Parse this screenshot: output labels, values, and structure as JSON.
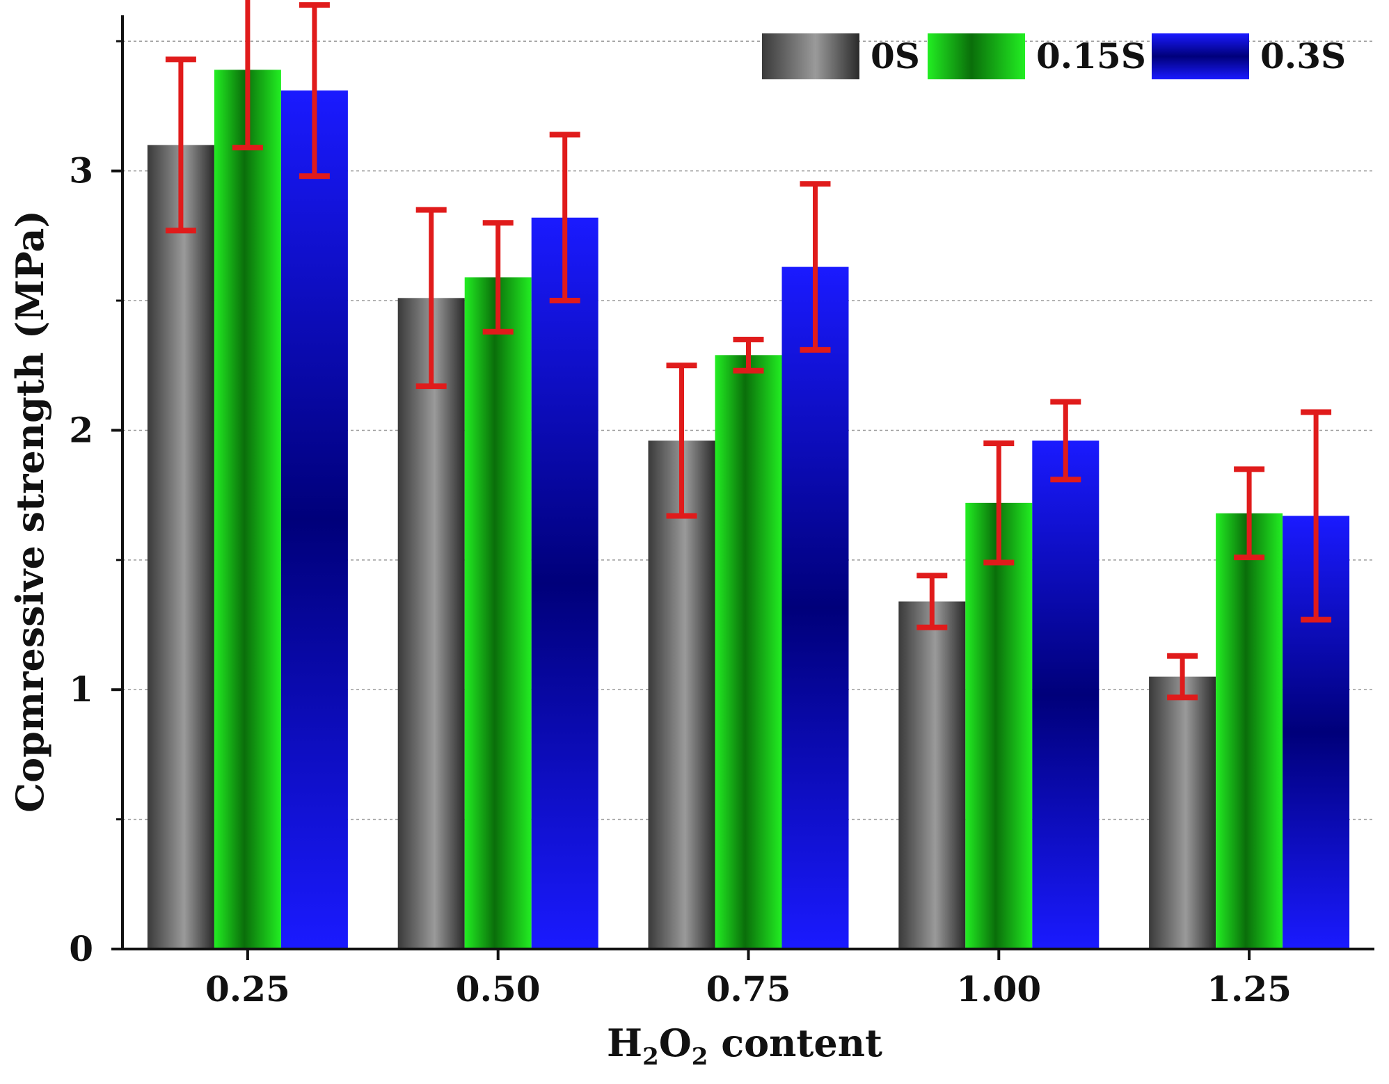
{
  "chart_data": {
    "type": "bar",
    "title": "",
    "xlabel": "H₂O₂ content",
    "xlabel_parts": {
      "base1": "H",
      "sub1": "2",
      "base2": "O",
      "sub2": "2",
      "rest": " content"
    },
    "ylabel": "Copmressive strength (MPa)",
    "ylim": [
      0,
      3.6
    ],
    "yticks": [
      0,
      1,
      2,
      3
    ],
    "yticks_labels": [
      "0",
      "1",
      "2",
      "3"
    ],
    "grid": true,
    "gridlines": [
      0.5,
      1,
      1.5,
      2,
      2.5,
      3,
      3.5
    ],
    "legend_position": "top-right",
    "categories": [
      "0.25",
      "0.50",
      "0.75",
      "1.00",
      "1.25"
    ],
    "series": [
      {
        "name": "0S",
        "color": "#333333",
        "highlight": "#9a9a9a",
        "values": [
          3.1,
          2.51,
          1.96,
          1.34,
          1.05
        ],
        "errors": [
          0.33,
          0.34,
          0.29,
          0.1,
          0.08
        ]
      },
      {
        "name": "0.15S",
        "color": "#0a6e0a",
        "highlight": "#22ee22",
        "values": [
          3.39,
          2.59,
          2.29,
          1.72,
          1.68
        ],
        "errors": [
          0.3,
          0.21,
          0.06,
          0.23,
          0.17
        ]
      },
      {
        "name": "0.3S",
        "color": "#00007a",
        "highlight": "#1a1aff",
        "values": [
          3.31,
          2.82,
          2.63,
          1.96,
          1.67
        ],
        "errors": [
          0.33,
          0.32,
          0.32,
          0.15,
          0.4
        ]
      }
    ],
    "error_bar_color": "#e01b1b"
  }
}
